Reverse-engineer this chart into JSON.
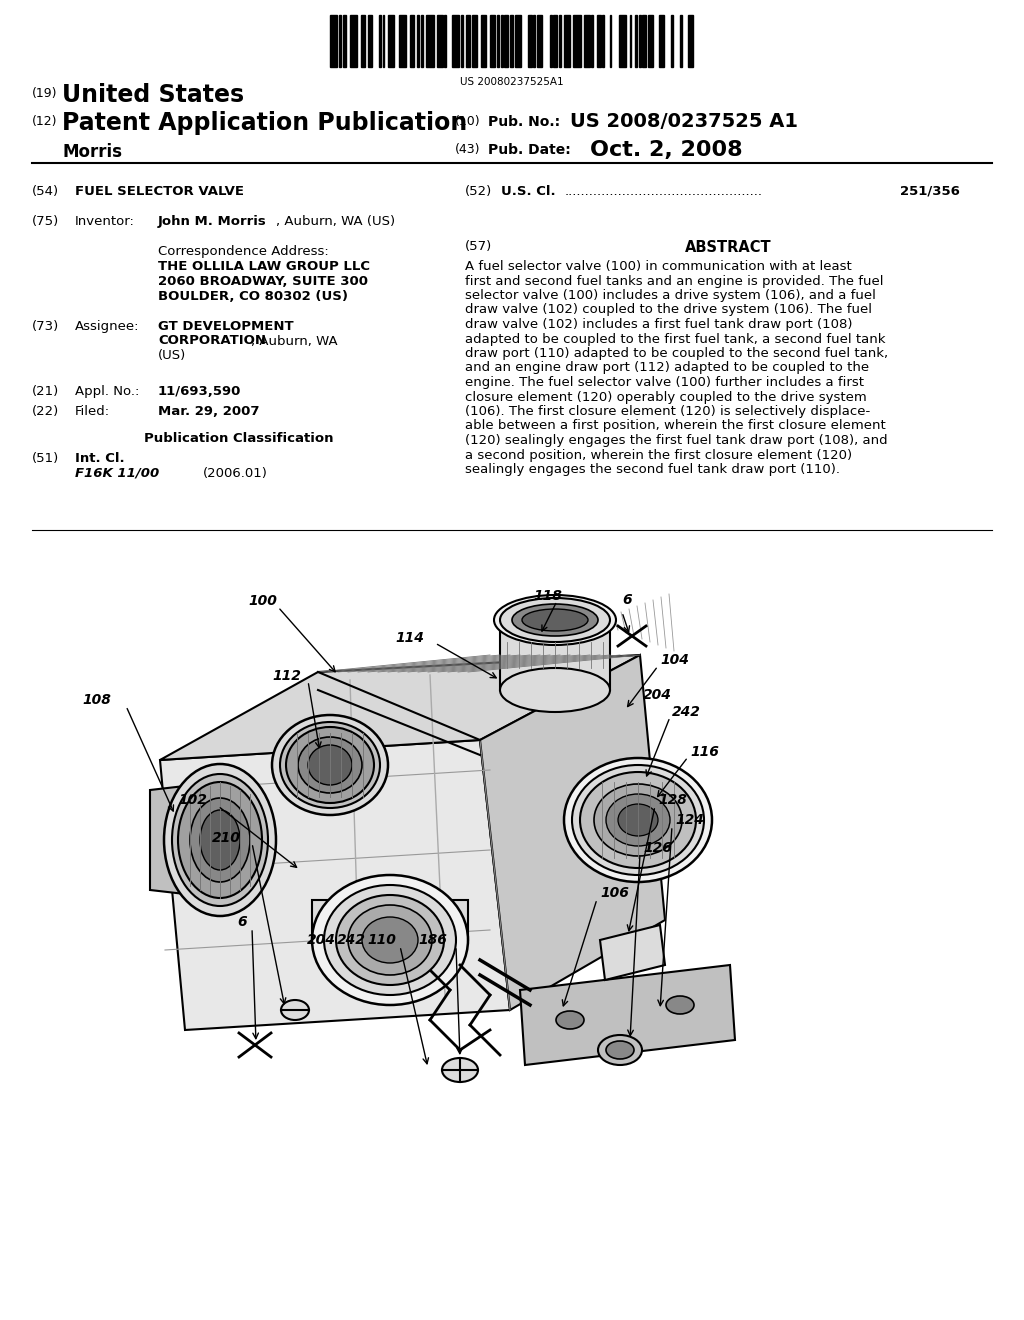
{
  "background_color": "#ffffff",
  "barcode_text": "US 20080237525A1",
  "pub_no_value": "US 2008/0237525 A1",
  "pub_date_value": "Oct. 2, 2008",
  "field54_value": "FUEL SELECTOR VALVE",
  "field52_class": "251/356",
  "field75_inventor": "John M. Morris",
  "field75_inventor2": ", Auburn, WA (US)",
  "corr_line1": "THE OLLILA LAW GROUP LLC",
  "corr_line2": "2060 BROADWAY, SUITE 300",
  "corr_line3": "BOULDER, CO 80302 (US)",
  "field73_value1": "GT DEVELOPMENT",
  "field73_value2": "CORPORATION",
  "field73_value3": ", Auburn, WA",
  "field73_value4": "(US)",
  "field21_value": "11/693,590",
  "field22_value": "Mar. 29, 2007",
  "field51_subkey": "F16K 11/00",
  "field51_year": "(2006.01)",
  "abstract_lines": [
    "A fuel selector valve (100) in communication with at least",
    "first and second fuel tanks and an engine is provided. The fuel",
    "selector valve (100) includes a drive system (106), and a fuel",
    "draw valve (102) coupled to the drive system (106). The fuel",
    "draw valve (102) includes a first fuel tank draw port (108)",
    "adapted to be coupled to the first fuel tank, a second fuel tank",
    "draw port (110) adapted to be coupled to the second fuel tank,",
    "and an engine draw port (112) adapted to be coupled to the",
    "engine. The fuel selector valve (100) further includes a first",
    "closure element (120) operably coupled to the drive system",
    "(106). The first closure element (120) is selectively displace-",
    "able between a first position, wherein the first closure element",
    "(120) sealingly engages the first fuel tank draw port (108), and",
    "a second position, wherein the first closure element (120)",
    "sealingly engages the second fuel tank draw port (110)."
  ]
}
